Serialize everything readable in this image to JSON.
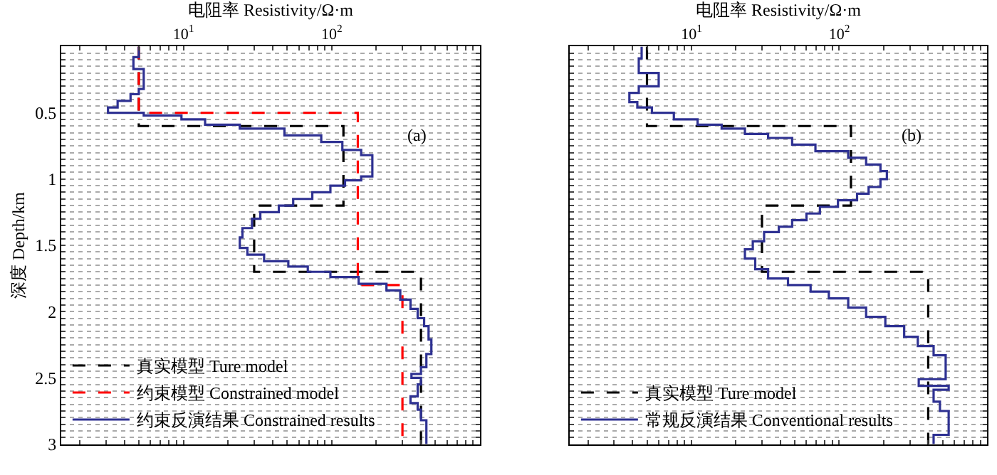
{
  "chart_data": [
    {
      "type": "step",
      "orientation": "horizontal",
      "xlabel": "电阻率 Resistivity/Ω·m",
      "ylabel": "深度 Depth/km",
      "log": "x",
      "xlim": [
        1.5,
        1000
      ],
      "ylim": [
        3,
        0
      ],
      "xticks": [
        {
          "value": 2,
          "label": null
        },
        {
          "value": 3,
          "label": null
        },
        {
          "value": 4,
          "label": null
        },
        {
          "value": 5,
          "label": null
        },
        {
          "value": 6,
          "label": null
        },
        {
          "value": 7,
          "label": null
        },
        {
          "value": 8,
          "label": null
        },
        {
          "value": 9,
          "label": null
        },
        {
          "value": 10,
          "label": "10$^{1}$"
        },
        {
          "value": 20,
          "label": null
        },
        {
          "value": 30,
          "label": null
        },
        {
          "value": 40,
          "label": null
        },
        {
          "value": 50,
          "label": null
        },
        {
          "value": 60,
          "label": null
        },
        {
          "value": 70,
          "label": null
        },
        {
          "value": 80,
          "label": null
        },
        {
          "value": 90,
          "label": null
        },
        {
          "value": 100,
          "label": "10$^{2}$"
        },
        {
          "value": 200,
          "label": null
        },
        {
          "value": 300,
          "label": null
        },
        {
          "value": 400,
          "label": null
        },
        {
          "value": 500,
          "label": null
        },
        {
          "value": 600,
          "label": null
        },
        {
          "value": 700,
          "label": null
        },
        {
          "value": 800,
          "label": null
        },
        {
          "value": 900,
          "label": null
        }
      ],
      "yticks": [
        {
          "value": 0.05,
          "label": null
        },
        {
          "value": 0.1,
          "label": null
        },
        {
          "value": 0.15,
          "label": null
        },
        {
          "value": 0.2,
          "label": null
        },
        {
          "value": 0.25,
          "label": null
        },
        {
          "value": 0.3,
          "label": null
        },
        {
          "value": 0.35,
          "label": null
        },
        {
          "value": 0.4,
          "label": null
        },
        {
          "value": 0.45,
          "label": null
        },
        0.5,
        {
          "value": 0.55,
          "label": null
        },
        {
          "value": 0.6,
          "label": null
        },
        {
          "value": 0.65,
          "label": null
        },
        {
          "value": 0.7,
          "label": null
        },
        {
          "value": 0.75,
          "label": null
        },
        {
          "value": 0.8,
          "label": null
        },
        {
          "value": 0.85,
          "label": null
        },
        {
          "value": 0.9,
          "label": null
        },
        {
          "value": 0.95,
          "label": null
        },
        1,
        {
          "value": 1.05,
          "label": null
        },
        {
          "value": 1.1,
          "label": null
        },
        {
          "value": 1.15,
          "label": null
        },
        {
          "value": 1.2,
          "label": null
        },
        {
          "value": 1.25,
          "label": null
        },
        {
          "value": 1.3,
          "label": null
        },
        {
          "value": 1.35,
          "label": null
        },
        {
          "value": 1.4,
          "label": null
        },
        {
          "value": 1.45,
          "label": null
        },
        1.5,
        {
          "value": 1.55,
          "label": null
        },
        {
          "value": 1.6,
          "label": null
        },
        {
          "value": 1.65,
          "label": null
        },
        {
          "value": 1.7,
          "label": null
        },
        {
          "value": 1.75,
          "label": null
        },
        {
          "value": 1.8,
          "label": null
        },
        {
          "value": 1.85,
          "label": null
        },
        {
          "value": 1.9,
          "label": null
        },
        {
          "value": 1.95,
          "label": null
        },
        2,
        {
          "value": 2.05,
          "label": null
        },
        {
          "value": 2.1,
          "label": null
        },
        {
          "value": 2.15,
          "label": null
        },
        {
          "value": 2.2,
          "label": null
        },
        {
          "value": 2.25,
          "label": null
        },
        {
          "value": 2.3,
          "label": null
        },
        {
          "value": 2.35,
          "label": null
        },
        {
          "value": 2.4,
          "label": null
        },
        {
          "value": 2.45,
          "label": null
        },
        2.5,
        {
          "value": 2.55,
          "label": null
        },
        {
          "value": 2.6,
          "label": null
        },
        {
          "value": 2.65,
          "label": null
        },
        {
          "value": 2.7,
          "label": null
        },
        {
          "value": 2.75,
          "label": null
        },
        {
          "value": 2.8,
          "label": null
        },
        {
          "value": 2.85,
          "label": null
        },
        {
          "value": 2.9,
          "label": null
        },
        {
          "value": 2.95,
          "label": null
        },
        3
      ],
      "grid": "y",
      "legend": "bottom left",
      "annotations": [
        "(a)"
      ],
      "series": [
        {
          "name": "真实模型 Ture model",
          "color": "#000000",
          "line_style": "dashed",
          "x": [
            0,
            0.6,
            1.2,
            1.7,
            3
          ],
          "values": [
            5,
            120,
            30,
            400,
            400
          ]
        },
        {
          "name": "约束模型 Constrained model",
          "color": "#ff0000",
          "line_style": "dashed",
          "x": [
            0,
            0.5,
            1.8,
            3
          ],
          "values": [
            5,
            150,
            300,
            300
          ]
        },
        {
          "name": "约束反演结果 Constrained results",
          "color": "#2e3192",
          "line_style": "solid",
          "x": [
            0,
            0.08,
            0.17,
            0.32,
            0.36,
            0.41,
            0.46,
            0.5,
            0.52,
            0.55,
            0.59,
            0.62,
            0.67,
            0.72,
            0.78,
            0.82,
            0.98,
            1.01,
            1.05,
            1.1,
            1.15,
            1.2,
            1.25,
            1.3,
            1.37,
            1.44,
            1.52,
            1.57,
            1.62,
            1.66,
            1.7,
            1.74,
            1.79,
            1.84,
            1.91,
            1.98,
            2.05,
            2.11,
            2.21,
            2.32,
            2.42,
            2.47,
            2.5,
            2.55,
            2.64,
            2.69,
            2.74,
            2.82,
            3
          ],
          "values": [
            5.0,
            4.6,
            5.4,
            5.0,
            4.4,
            3.6,
            3.1,
            5.4,
            9.7,
            14,
            24,
            48,
            85,
            118,
            158,
            188,
            158,
            123,
            98,
            74,
            55,
            44,
            33,
            29,
            25,
            24,
            27,
            35,
            51,
            69,
            98,
            152,
            234,
            290,
            340,
            380,
            420,
            450,
            470,
            435,
            400,
            345,
            400,
            380,
            340,
            380,
            400,
            435,
            435
          ]
        }
      ]
    },
    {
      "type": "step",
      "orientation": "horizontal",
      "xlabel": "电阻率 Resistivity/Ω·m",
      "log": "x",
      "xlim": [
        1.5,
        1000
      ],
      "ylim": [
        3,
        0
      ],
      "tick_labels": "x",
      "xticks": [
        {
          "value": 2,
          "label": null
        },
        {
          "value": 3,
          "label": null
        },
        {
          "value": 4,
          "label": null
        },
        {
          "value": 5,
          "label": null
        },
        {
          "value": 6,
          "label": null
        },
        {
          "value": 7,
          "label": null
        },
        {
          "value": 8,
          "label": null
        },
        {
          "value": 9,
          "label": null
        },
        {
          "value": 10,
          "label": "10$^{1}$"
        },
        {
          "value": 20,
          "label": null
        },
        {
          "value": 30,
          "label": null
        },
        {
          "value": 40,
          "label": null
        },
        {
          "value": 50,
          "label": null
        },
        {
          "value": 60,
          "label": null
        },
        {
          "value": 70,
          "label": null
        },
        {
          "value": 80,
          "label": null
        },
        {
          "value": 90,
          "label": null
        },
        {
          "value": 100,
          "label": "10$^{2}$"
        },
        {
          "value": 200,
          "label": null
        },
        {
          "value": 300,
          "label": null
        },
        {
          "value": 400,
          "label": null
        },
        {
          "value": 500,
          "label": null
        },
        {
          "value": 600,
          "label": null
        },
        {
          "value": 700,
          "label": null
        },
        {
          "value": 800,
          "label": null
        },
        {
          "value": 900,
          "label": null
        }
      ],
      "yticks": [
        {
          "value": 0.05,
          "label": null
        },
        {
          "value": 0.1,
          "label": null
        },
        {
          "value": 0.15,
          "label": null
        },
        {
          "value": 0.2,
          "label": null
        },
        {
          "value": 0.25,
          "label": null
        },
        {
          "value": 0.3,
          "label": null
        },
        {
          "value": 0.35,
          "label": null
        },
        {
          "value": 0.4,
          "label": null
        },
        {
          "value": 0.45,
          "label": null
        },
        0.5,
        {
          "value": 0.55,
          "label": null
        },
        {
          "value": 0.6,
          "label": null
        },
        {
          "value": 0.65,
          "label": null
        },
        {
          "value": 0.7,
          "label": null
        },
        {
          "value": 0.75,
          "label": null
        },
        {
          "value": 0.8,
          "label": null
        },
        {
          "value": 0.85,
          "label": null
        },
        {
          "value": 0.9,
          "label": null
        },
        {
          "value": 0.95,
          "label": null
        },
        1,
        {
          "value": 1.05,
          "label": null
        },
        {
          "value": 1.1,
          "label": null
        },
        {
          "value": 1.15,
          "label": null
        },
        {
          "value": 1.2,
          "label": null
        },
        {
          "value": 1.25,
          "label": null
        },
        {
          "value": 1.3,
          "label": null
        },
        {
          "value": 1.35,
          "label": null
        },
        {
          "value": 1.4,
          "label": null
        },
        {
          "value": 1.45,
          "label": null
        },
        1.5,
        {
          "value": 1.55,
          "label": null
        },
        {
          "value": 1.6,
          "label": null
        },
        {
          "value": 1.65,
          "label": null
        },
        {
          "value": 1.7,
          "label": null
        },
        {
          "value": 1.75,
          "label": null
        },
        {
          "value": 1.8,
          "label": null
        },
        {
          "value": 1.85,
          "label": null
        },
        {
          "value": 1.9,
          "label": null
        },
        {
          "value": 1.95,
          "label": null
        },
        2,
        {
          "value": 2.05,
          "label": null
        },
        {
          "value": 2.1,
          "label": null
        },
        {
          "value": 2.15,
          "label": null
        },
        {
          "value": 2.2,
          "label": null
        },
        {
          "value": 2.25,
          "label": null
        },
        {
          "value": 2.3,
          "label": null
        },
        {
          "value": 2.35,
          "label": null
        },
        {
          "value": 2.4,
          "label": null
        },
        {
          "value": 2.45,
          "label": null
        },
        2.5,
        {
          "value": 2.55,
          "label": null
        },
        {
          "value": 2.6,
          "label": null
        },
        {
          "value": 2.65,
          "label": null
        },
        {
          "value": 2.7,
          "label": null
        },
        {
          "value": 2.75,
          "label": null
        },
        {
          "value": 2.8,
          "label": null
        },
        {
          "value": 2.85,
          "label": null
        },
        {
          "value": 2.9,
          "label": null
        },
        {
          "value": 2.95,
          "label": null
        },
        3
      ],
      "grid": "y",
      "legend": "bottom left",
      "annotations": [
        "(b)"
      ],
      "series": [
        {
          "name": "真实模型 Ture model",
          "color": "#000000",
          "line_style": "dashed",
          "x": [
            0,
            0.6,
            1.2,
            1.7,
            3
          ],
          "values": [
            5,
            120,
            30,
            400,
            400
          ]
        },
        {
          "name": "常规反演结果 Conventional results",
          "color": "#2e3192",
          "line_style": "solid",
          "x": [
            0,
            0.09,
            0.2,
            0.3,
            0.35,
            0.42,
            0.46,
            0.5,
            0.55,
            0.59,
            0.62,
            0.66,
            0.69,
            0.74,
            0.79,
            0.84,
            0.89,
            0.94,
            1.0,
            1.06,
            1.11,
            1.16,
            1.21,
            1.26,
            1.31,
            1.36,
            1.4,
            1.47,
            1.53,
            1.6,
            1.68,
            1.75,
            1.8,
            1.85,
            1.9,
            1.97,
            2.04,
            2.11,
            2.19,
            2.26,
            2.33,
            2.51,
            2.56,
            2.59,
            2.68,
            2.75,
            2.93,
            3
          ],
          "values": [
            4.6,
            4.4,
            6.0,
            4.4,
            3.8,
            4.3,
            5.4,
            7.6,
            11,
            16,
            23,
            33,
            48,
            69,
            115,
            152,
            190,
            210,
            190,
            158,
            132,
            98,
            74,
            60,
            48,
            39,
            31,
            26,
            23,
            27,
            33,
            45,
            64,
            85,
            115,
            152,
            205,
            275,
            340,
            435,
            525,
            345,
            550,
            435,
            480,
            550,
            435,
            435
          ]
        }
      ]
    }
  ]
}
